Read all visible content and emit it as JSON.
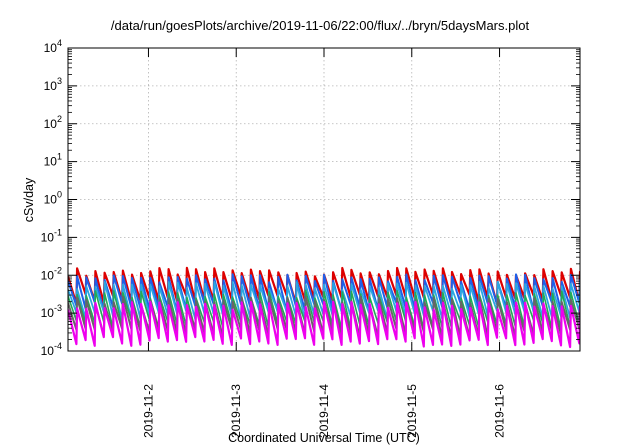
{
  "chart_data": {
    "type": "line",
    "title": "/data/run/goesPlots/archive/2019-11-06/22:00/flux/../bryn/5daysMars.plot",
    "xlabel": "Coordinated Universal Time (UTC)",
    "ylabel": "cSv/day",
    "yscale": "log",
    "ylim": [
      0.0001,
      10000
    ],
    "xlim": [
      "2019-11-01 02:00",
      "2019-11-06 22:00"
    ],
    "grid": true,
    "y_ticks": [
      {
        "exp": "-4",
        "value": 0.0001
      },
      {
        "exp": "-3",
        "value": 0.001
      },
      {
        "exp": "-2",
        "value": 0.01
      },
      {
        "exp": "-1",
        "value": 0.1
      },
      {
        "exp": "0",
        "value": 1
      },
      {
        "exp": "1",
        "value": 10
      },
      {
        "exp": "2",
        "value": 100
      },
      {
        "exp": "3",
        "value": 1000
      },
      {
        "exp": "4",
        "value": 10000
      }
    ],
    "x_ticks": [
      {
        "label": "2019-11-2",
        "date": "2019-11-02 00:00"
      },
      {
        "label": "2019-11-3",
        "date": "2019-11-03 00:00"
      },
      {
        "label": "2019-11-4",
        "date": "2019-11-04 00:00"
      },
      {
        "label": "2019-11-5",
        "date": "2019-11-05 00:00"
      },
      {
        "label": "2019-11-6",
        "date": "2019-11-06 00:00"
      }
    ],
    "series": [
      {
        "color": "#dd0000",
        "cycle_hours": 2.5,
        "peak": 0.0125,
        "trough": 0.0025
      },
      {
        "color": "#1f5fe8",
        "cycle_hours": 2.5,
        "peak": 0.0085,
        "trough": 0.0015
      },
      {
        "color": "#2aa7e0",
        "cycle_hours": 2.5,
        "peak": 0.0055,
        "trough": 0.0009
      },
      {
        "color": "#22aa55",
        "cycle_hours": 2.5,
        "peak": 0.0032,
        "trough": 0.0005
      },
      {
        "color": "#666666",
        "cycle_hours": 2.5,
        "peak": 0.0022,
        "trough": 0.0003
      },
      {
        "color": "#ee00ee",
        "cycle_hours": 2.5,
        "peak": 0.0016,
        "trough": 0.00018
      }
    ],
    "colors": {
      "grid": "#b4b4b4",
      "frame": "#000000"
    }
  }
}
